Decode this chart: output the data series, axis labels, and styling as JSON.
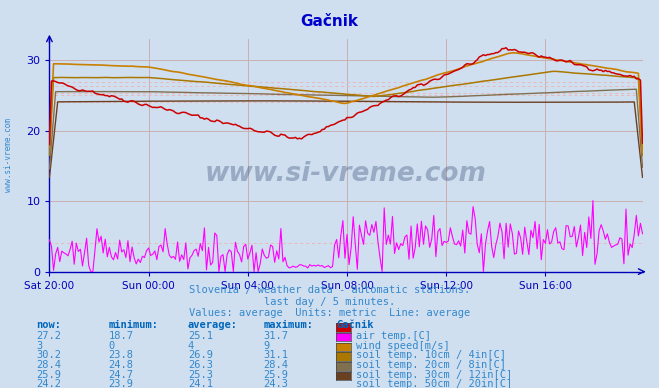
{
  "title": "Gačnik",
  "background_color": "#d0dff0",
  "plot_bg_color": "#d0dff0",
  "subtitle_lines": [
    "Slovenia / weather data - automatic stations.",
    "last day / 5 minutes.",
    "Values: average  Units: metric  Line: average"
  ],
  "x_labels": [
    "Sat 20:00",
    "Sun 00:00",
    "Sun 04:00",
    "Sun 08:00",
    "Sun 12:00",
    "Sun 16:00"
  ],
  "ylim": [
    0,
    33
  ],
  "yticks": [
    0,
    10,
    20,
    30
  ],
  "grid_color": "#c8a8a8",
  "dotted_color": "#e8b8b8",
  "watermark": "www.si-vreme.com",
  "series": [
    {
      "label": "air temp.[C]",
      "color": "#cc0000",
      "now": "27.2",
      "min": "18.7",
      "avg": "25.1",
      "max": "31.7"
    },
    {
      "label": "wind speed[m/s]",
      "color": "#ff00ff",
      "now": "3",
      "min": "0",
      "avg": "4",
      "max": "9"
    },
    {
      "label": "soil temp. 10cm / 4in[C]",
      "color": "#c88000",
      "now": "30.2",
      "min": "23.8",
      "avg": "26.9",
      "max": "31.1"
    },
    {
      "label": "soil temp. 20cm / 8in[C]",
      "color": "#aa7700",
      "now": "28.4",
      "min": "24.8",
      "avg": "26.3",
      "max": "28.4"
    },
    {
      "label": "soil temp. 30cm / 12in[C]",
      "color": "#807050",
      "now": "25.9",
      "min": "24.7",
      "avg": "25.3",
      "max": "25.9"
    },
    {
      "label": "soil temp. 50cm / 20in[C]",
      "color": "#6b4020",
      "now": "24.2",
      "min": "23.9",
      "avg": "24.1",
      "max": "24.3"
    }
  ],
  "table_headers": [
    "now:",
    "minimum:",
    "average:",
    "maximum:",
    "Gačnik"
  ],
  "axis_color": "#0000bb",
  "tick_color": "#0000bb",
  "label_color": "#3388cc",
  "header_color": "#0066bb",
  "title_color": "#0000cc"
}
